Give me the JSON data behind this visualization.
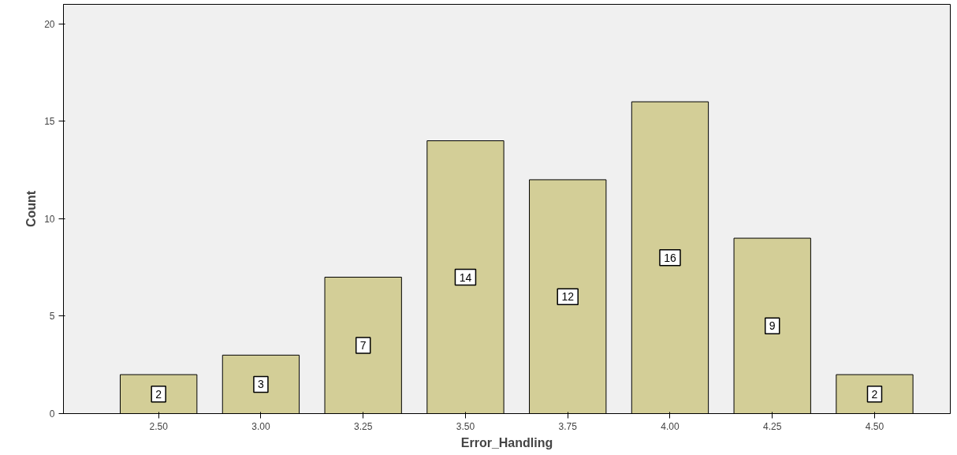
{
  "chart_data": {
    "type": "bar",
    "xlabel": "Error_Handling",
    "ylabel": "Count",
    "categories": [
      "2.50",
      "3.00",
      "3.25",
      "3.50",
      "3.75",
      "4.00",
      "4.25",
      "4.50"
    ],
    "values": [
      2,
      3,
      7,
      14,
      12,
      16,
      9,
      2
    ],
    "color": "#d3ce97",
    "ylim": [
      0,
      21
    ],
    "yticks": [
      0,
      5,
      10,
      15,
      20
    ],
    "grid": false,
    "data_labels": true
  }
}
